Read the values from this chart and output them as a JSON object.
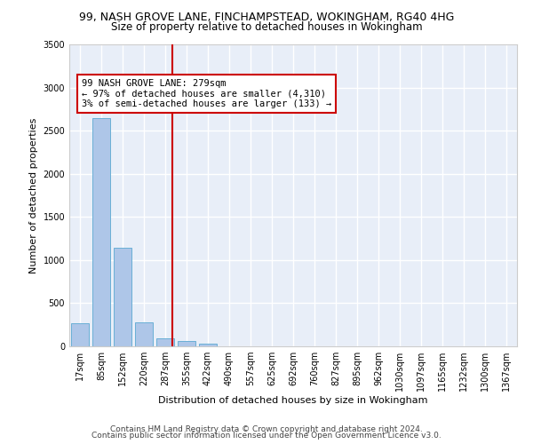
{
  "title_line1": "99, NASH GROVE LANE, FINCHAMPSTEAD, WOKINGHAM, RG40 4HG",
  "title_line2": "Size of property relative to detached houses in Wokingham",
  "xlabel": "Distribution of detached houses by size in Wokingham",
  "ylabel": "Number of detached properties",
  "categories": [
    "17sqm",
    "85sqm",
    "152sqm",
    "220sqm",
    "287sqm",
    "355sqm",
    "422sqm",
    "490sqm",
    "557sqm",
    "625sqm",
    "692sqm",
    "760sqm",
    "827sqm",
    "895sqm",
    "962sqm",
    "1030sqm",
    "1097sqm",
    "1165sqm",
    "1232sqm",
    "1300sqm",
    "1367sqm"
  ],
  "values": [
    270,
    2650,
    1140,
    280,
    90,
    60,
    35,
    0,
    0,
    0,
    0,
    0,
    0,
    0,
    0,
    0,
    0,
    0,
    0,
    0,
    0
  ],
  "bar_color": "#aec6e8",
  "bar_edge_color": "#6aafd6",
  "vline_index": 4,
  "vline_color": "#cc0000",
  "annotation_text": "99 NASH GROVE LANE: 279sqm\n← 97% of detached houses are smaller (4,310)\n3% of semi-detached houses are larger (133) →",
  "annotation_box_color": "#cc0000",
  "ylim": [
    0,
    3500
  ],
  "yticks": [
    0,
    500,
    1000,
    1500,
    2000,
    2500,
    3000,
    3500
  ],
  "background_color": "#e8eef8",
  "grid_color": "#ffffff",
  "footer_line1": "Contains HM Land Registry data © Crown copyright and database right 2024.",
  "footer_line2": "Contains public sector information licensed under the Open Government Licence v3.0.",
  "title_fontsize": 9,
  "subtitle_fontsize": 8.5,
  "axis_label_fontsize": 8,
  "tick_fontsize": 7,
  "annotation_fontsize": 7.5,
  "footer_fontsize": 6.5
}
